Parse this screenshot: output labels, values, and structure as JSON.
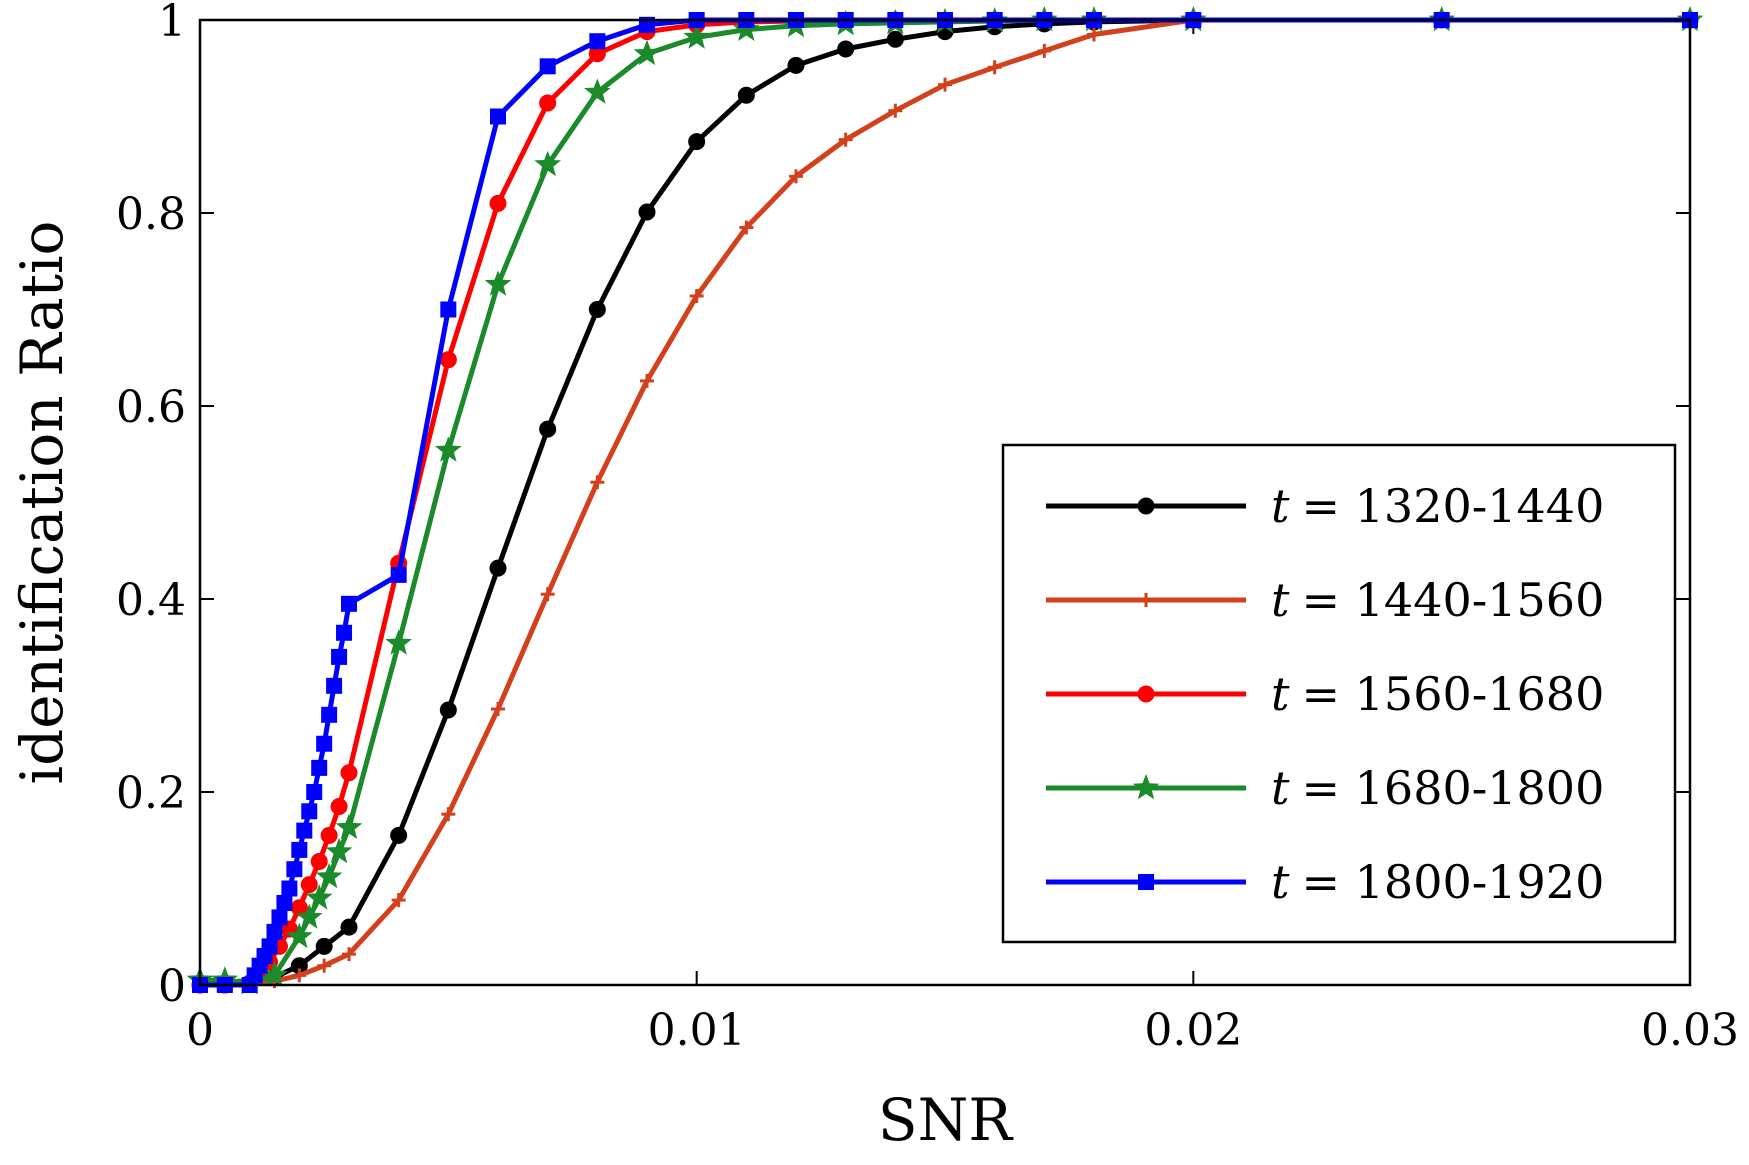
{
  "chart_data": {
    "type": "line",
    "title": "",
    "xlabel": "SNR",
    "ylabel": "identification Ratio",
    "xlim": [
      0,
      0.03
    ],
    "ylim": [
      0,
      1
    ],
    "xticks": [
      {
        "value": 0,
        "label": "0"
      },
      {
        "value": 0.01,
        "label": "0.01"
      },
      {
        "value": 0.02,
        "label": "0.02"
      },
      {
        "value": 0.03,
        "label": "0.03"
      }
    ],
    "yticks": [
      {
        "value": 0,
        "label": "0"
      },
      {
        "value": 0.2,
        "label": "0.2"
      },
      {
        "value": 0.4,
        "label": "0.4"
      },
      {
        "value": 0.6,
        "label": "0.6"
      },
      {
        "value": 0.8,
        "label": "0.8"
      },
      {
        "value": 1,
        "label": "1"
      }
    ],
    "legend_position": "lower-right",
    "series": [
      {
        "name": "t = 1320-1440",
        "t_symbol": "t",
        "range": "= 1320-1440",
        "color": "#000000",
        "marker": "circle",
        "x": [
          0,
          0.0005,
          0.001,
          0.0015,
          0.002,
          0.0025,
          0.003,
          0.004,
          0.005,
          0.006,
          0.007,
          0.008,
          0.009,
          0.01,
          0.011,
          0.012,
          0.013,
          0.014,
          0.015,
          0.016,
          0.017,
          0.018,
          0.02,
          0.025,
          0.03
        ],
        "y": [
          0,
          0,
          0.002,
          0.008,
          0.02,
          0.04,
          0.06,
          0.155,
          0.285,
          0.432,
          0.576,
          0.7,
          0.801,
          0.874,
          0.922,
          0.953,
          0.97,
          0.98,
          0.988,
          0.993,
          0.996,
          0.998,
          1,
          1,
          1
        ]
      },
      {
        "name": "t = 1440-1560",
        "t_symbol": "t",
        "range": "= 1440-1560",
        "color": "#d2401c",
        "marker": "plus",
        "x": [
          0,
          0.0005,
          0.001,
          0.0015,
          0.002,
          0.0025,
          0.003,
          0.004,
          0.005,
          0.006,
          0.007,
          0.008,
          0.009,
          0.01,
          0.011,
          0.012,
          0.013,
          0.014,
          0.015,
          0.016,
          0.017,
          0.018,
          0.02,
          0.025,
          0.03
        ],
        "y": [
          0,
          0,
          0.001,
          0.004,
          0.01,
          0.02,
          0.032,
          0.088,
          0.177,
          0.286,
          0.405,
          0.521,
          0.626,
          0.714,
          0.785,
          0.838,
          0.876,
          0.906,
          0.933,
          0.951,
          0.968,
          0.985,
          1,
          1,
          1
        ]
      },
      {
        "name": "t = 1560-1680",
        "t_symbol": "t",
        "range": "= 1560-1680",
        "color": "#ff0000",
        "marker": "circle",
        "x": [
          0,
          0.0005,
          0.001,
          0.0012,
          0.0014,
          0.0016,
          0.0018,
          0.002,
          0.0022,
          0.0024,
          0.0026,
          0.0028,
          0.003,
          0.004,
          0.005,
          0.006,
          0.007,
          0.008,
          0.009,
          0.01,
          0.011,
          0.012,
          0.014,
          0.016,
          0.018,
          0.02,
          0.025,
          0.03
        ],
        "y": [
          0,
          0,
          0.002,
          0.012,
          0.024,
          0.04,
          0.058,
          0.08,
          0.104,
          0.128,
          0.155,
          0.185,
          0.22,
          0.437,
          0.648,
          0.81,
          0.914,
          0.965,
          0.988,
          0.995,
          0.998,
          0.999,
          1,
          1,
          1,
          1,
          1,
          1
        ]
      },
      {
        "name": "t = 1680-1800",
        "t_symbol": "t",
        "range": "= 1680-1800",
        "color": "#1a8a2a",
        "marker": "star",
        "x": [
          0,
          0.0005,
          0.001,
          0.0015,
          0.002,
          0.0022,
          0.0024,
          0.0026,
          0.0028,
          0.003,
          0.004,
          0.005,
          0.006,
          0.007,
          0.008,
          0.009,
          0.01,
          0.011,
          0.012,
          0.013,
          0.014,
          0.015,
          0.016,
          0.017,
          0.018,
          0.02,
          0.025,
          0.03
        ],
        "y": [
          0.005,
          0.005,
          0.002,
          0.01,
          0.05,
          0.07,
          0.09,
          0.112,
          0.138,
          0.163,
          0.354,
          0.554,
          0.726,
          0.85,
          0.925,
          0.965,
          0.982,
          0.99,
          0.994,
          0.996,
          0.997,
          0.998,
          0.999,
          1,
          1,
          1,
          1,
          1
        ]
      },
      {
        "name": "t = 1800-1920",
        "t_symbol": "t",
        "range": "= 1800-1920",
        "color": "#0000ff",
        "marker": "square",
        "x": [
          0,
          0.0005,
          0.001,
          0.0011,
          0.0012,
          0.0013,
          0.0014,
          0.0015,
          0.0016,
          0.0017,
          0.0018,
          0.0019,
          0.002,
          0.0021,
          0.0022,
          0.0023,
          0.0024,
          0.0025,
          0.0026,
          0.0027,
          0.0028,
          0.0029,
          0.003,
          0.004,
          0.005,
          0.006,
          0.007,
          0.008,
          0.009,
          0.01,
          0.011,
          0.012,
          0.013,
          0.014,
          0.015,
          0.016,
          0.017,
          0.018,
          0.02,
          0.025,
          0.03
        ],
        "y": [
          0,
          0,
          0,
          0.01,
          0.02,
          0.03,
          0.04,
          0.055,
          0.07,
          0.085,
          0.1,
          0.12,
          0.14,
          0.16,
          0.18,
          0.2,
          0.225,
          0.25,
          0.28,
          0.31,
          0.34,
          0.365,
          0.395,
          0.425,
          0.7,
          0.9,
          0.952,
          0.978,
          0.995,
          1,
          1,
          1,
          1,
          1,
          1,
          1,
          1,
          1,
          1,
          1,
          1
        ]
      }
    ]
  }
}
